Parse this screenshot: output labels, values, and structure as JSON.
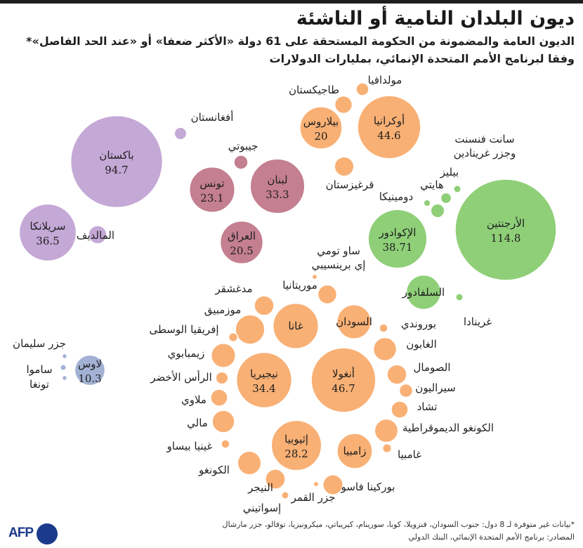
{
  "header": {
    "title": "ديون البلدان النامية أو الناشئة",
    "subtitle_line1": "الديون العامة والمضمونة من الحكومة المستحقة على 61 دولة «الأكثر ضعفا» أو «عند الحد الفاصل»*",
    "subtitle_line2": "وفقا لبرنامج الأمم المتحدة الإنمائي، بمليارات الدولارات"
  },
  "footer": {
    "note": "*بيانات غير متوفرة لـ 8 دول: جنوب السودان، فنزويلا، كوبا، سورينام، كيريباتي، ميكرونيزيا، توفالو، جزر مارشال",
    "sources": "المصادر: برنامج الأمم المتحدة الإنمائي، البنك الدولي",
    "logo_text": "AFP"
  },
  "colors": {
    "purple": "#c4a8d6",
    "rose": "#c47f90",
    "orange": "#f9b075",
    "green": "#8fcf78",
    "blue": "#a3b2d4"
  },
  "chart_data": {
    "type": "packed-bubble",
    "unit": "مليارات الدولارات",
    "groups": [
      {
        "color_key": "purple",
        "countries": [
          {
            "name": "باكستان",
            "value": 94.7,
            "label": "94.7"
          },
          {
            "name": "سريلانكا",
            "value": 36.5,
            "label": "36.5"
          },
          {
            "name": "أفغانستان",
            "value": 1.7
          },
          {
            "name": "المالديف",
            "value": 3.7
          }
        ]
      },
      {
        "color_key": "rose",
        "countries": [
          {
            "name": "لبنان",
            "value": 33.3,
            "label": "33.3"
          },
          {
            "name": "تونس",
            "value": 23.1,
            "label": "23.1"
          },
          {
            "name": "العراق",
            "value": 20.5,
            "label": "20.5"
          },
          {
            "name": "جيبوتي",
            "value": 2.2
          }
        ]
      },
      {
        "color_key": "orange",
        "countries": [
          {
            "name": "أوكرانيا",
            "value": 44.6,
            "label": "44.6"
          },
          {
            "name": "بيلاروس",
            "value": 20,
            "label": "20"
          },
          {
            "name": "مولدافيا",
            "value": 1.8
          },
          {
            "name": "طاجيكستان",
            "value": 3.4
          },
          {
            "name": "قرغيزستان",
            "value": 4.2
          }
        ]
      },
      {
        "color_key": "green",
        "countries": [
          {
            "name": "الأرجنتين",
            "value": 114.8,
            "label": "114.8"
          },
          {
            "name": "الإكوادور",
            "value": 38.71,
            "label": "38.71"
          },
          {
            "name": "السلفادور",
            "value": 13.3
          },
          {
            "name": "دومينيكا",
            "value": 0.5
          },
          {
            "name": "هايتي",
            "value": 2.1
          },
          {
            "name": "بيليز",
            "value": 1.3
          },
          {
            "name": "سانت فنسنت وجزر غرينادين",
            "value": 0.6
          },
          {
            "name": "غرينادا",
            "value": 0.6
          }
        ]
      },
      {
        "color_key": "orange",
        "countries": [
          {
            "name": "أنغولا",
            "value": 46.7,
            "label": "46.7"
          },
          {
            "name": "نيجيريا",
            "value": 34.4,
            "label": "34.4"
          },
          {
            "name": "إثيوبيا",
            "value": 28.2,
            "label": "28.2"
          },
          {
            "name": "غانا",
            "value": 23.1
          },
          {
            "name": "السودان",
            "value": 13
          },
          {
            "name": "زامبيا",
            "value": 13.9
          },
          {
            "name": "الغابون",
            "value": 6
          },
          {
            "name": "الصومال",
            "value": 4.3
          },
          {
            "name": "سيراليون",
            "value": 2
          },
          {
            "name": "تشاد",
            "value": 3.2
          },
          {
            "name": "الكونغو الديموقراطية",
            "value": 6.1
          },
          {
            "name": "غامبيا",
            "value": 0.9
          },
          {
            "name": "بوركينا فاسو",
            "value": 4.5
          },
          {
            "name": "بوروندي",
            "value": 0.8
          },
          {
            "name": "موريتانيا",
            "value": 4
          },
          {
            "name": "ساو تومي إي برينسيبي",
            "value": 0.3
          },
          {
            "name": "مدغشقر",
            "value": 4.3
          },
          {
            "name": "موزمبيق",
            "value": 9.6
          },
          {
            "name": "إفريقيا الوسطى",
            "value": 0.9
          },
          {
            "name": "زيمبابوي",
            "value": 6.6
          },
          {
            "name": "الرأس الأخضر",
            "value": 1.7
          },
          {
            "name": "ملاوي",
            "value": 3.2
          },
          {
            "name": "مالي",
            "value": 5.6
          },
          {
            "name": "غينيا بيساو",
            "value": 0.8
          },
          {
            "name": "الكونغو",
            "value": 6.2
          },
          {
            "name": "النيجر",
            "value": 4.4
          },
          {
            "name": "إسواتيني",
            "value": 0.6
          },
          {
            "name": "جزر القمر",
            "value": 0.3
          }
        ]
      },
      {
        "color_key": "blue",
        "countries": [
          {
            "name": "لاوس",
            "value": 10.3,
            "label": "10.3"
          },
          {
            "name": "جزر سليمان",
            "value": 0.2
          },
          {
            "name": "ساموا",
            "value": 0.4
          },
          {
            "name": "تونغا",
            "value": 0.2
          }
        ]
      }
    ]
  }
}
